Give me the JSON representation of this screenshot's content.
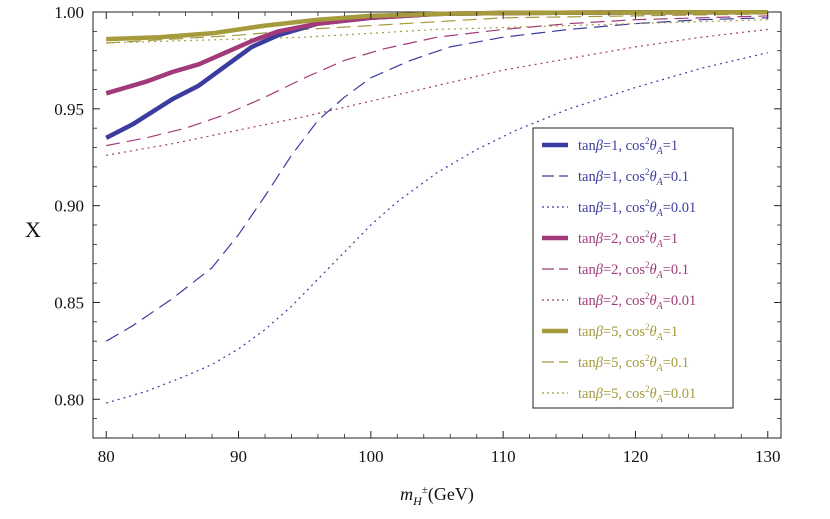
{
  "chart_data": {
    "type": "line",
    "title": "",
    "xlabel_parts": {
      "base": "m",
      "sub": "H",
      "sup": "±",
      "unit": "(GeV)"
    },
    "ylabel": "X",
    "xlim": [
      79,
      131
    ],
    "ylim": [
      0.78,
      1.0
    ],
    "xticks": [
      80,
      90,
      100,
      110,
      120,
      130
    ],
    "yticks": [
      0.8,
      0.85,
      0.9,
      0.95,
      1.0
    ],
    "ytick_labels": [
      "0.80",
      "0.85",
      "0.90",
      "0.95",
      "1.00"
    ],
    "grid": false,
    "legend_position": "right",
    "series": [
      {
        "name": "tanβ=1, cos²θA=1",
        "tanb": "1",
        "cos": "1",
        "color": "#3c3ca0",
        "style": "solid",
        "x": [
          80,
          82,
          85,
          87,
          89,
          91,
          93,
          96,
          100,
          105,
          110,
          120,
          130
        ],
        "y": [
          0.935,
          0.942,
          0.955,
          0.962,
          0.972,
          0.982,
          0.988,
          0.994,
          0.997,
          0.999,
          0.9995,
          0.9998,
          0.9999
        ]
      },
      {
        "name": "tanβ=1, cos²θA=0.1",
        "tanb": "1",
        "cos": "0.1",
        "color": "#3c3ca0",
        "style": "dashed",
        "x": [
          80,
          82,
          85,
          88,
          90,
          92,
          94,
          96,
          98,
          100,
          103,
          106,
          110,
          115,
          120,
          125,
          130
        ],
        "y": [
          0.83,
          0.838,
          0.852,
          0.868,
          0.885,
          0.905,
          0.926,
          0.944,
          0.956,
          0.966,
          0.975,
          0.982,
          0.987,
          0.991,
          0.994,
          0.996,
          0.997
        ]
      },
      {
        "name": "tanβ=1, cos²θA=0.01",
        "tanb": "1",
        "cos": "0.01",
        "color": "#3c3ca0",
        "style": "dotted",
        "x": [
          80,
          83,
          86,
          88,
          90,
          92,
          94,
          96,
          98,
          100,
          102,
          105,
          108,
          111,
          115,
          120,
          125,
          130
        ],
        "y": [
          0.798,
          0.804,
          0.812,
          0.818,
          0.826,
          0.836,
          0.848,
          0.862,
          0.876,
          0.89,
          0.902,
          0.917,
          0.929,
          0.939,
          0.95,
          0.961,
          0.971,
          0.979
        ]
      },
      {
        "name": "tanβ=2, cos²θA=1",
        "tanb": "2",
        "cos": "1",
        "color": "#a23a7a",
        "style": "solid",
        "x": [
          80,
          83,
          85,
          87,
          89,
          91,
          93,
          96,
          100,
          105,
          110,
          120,
          130
        ],
        "y": [
          0.958,
          0.964,
          0.969,
          0.973,
          0.979,
          0.985,
          0.99,
          0.994,
          0.997,
          0.999,
          0.9995,
          0.9998,
          0.9999
        ]
      },
      {
        "name": "tanβ=2, cos²θA=0.1",
        "tanb": "2",
        "cos": "0.1",
        "color": "#a23a7a",
        "style": "dashed",
        "x": [
          80,
          83,
          86,
          89,
          92,
          95,
          98,
          101,
          105,
          110,
          115,
          120,
          130
        ],
        "y": [
          0.931,
          0.935,
          0.94,
          0.947,
          0.956,
          0.966,
          0.975,
          0.981,
          0.987,
          0.991,
          0.994,
          0.996,
          0.998
        ]
      },
      {
        "name": "tanβ=2, cos²θA=0.01",
        "tanb": "2",
        "cos": "0.01",
        "color": "#a23a7a",
        "style": "dotted",
        "x": [
          80,
          85,
          90,
          95,
          100,
          105,
          110,
          115,
          120,
          125,
          130
        ],
        "y": [
          0.926,
          0.932,
          0.939,
          0.946,
          0.954,
          0.962,
          0.97,
          0.976,
          0.982,
          0.987,
          0.991
        ]
      },
      {
        "name": "tanβ=5, cos²θA=1",
        "tanb": "5",
        "cos": "1",
        "color": "#a59a3c",
        "style": "solid",
        "x": [
          80,
          84,
          88,
          92,
          96,
          100,
          105,
          110,
          120,
          130
        ],
        "y": [
          0.986,
          0.987,
          0.989,
          0.993,
          0.996,
          0.998,
          0.999,
          0.9995,
          0.9998,
          0.9999
        ]
      },
      {
        "name": "tanβ=5, cos²θA=0.1",
        "tanb": "5",
        "cos": "0.1",
        "color": "#a59a3c",
        "style": "dashed",
        "x": [
          80,
          85,
          90,
          95,
          100,
          105,
          110,
          120,
          130
        ],
        "y": [
          0.984,
          0.986,
          0.988,
          0.991,
          0.993,
          0.995,
          0.997,
          0.998,
          0.999
        ]
      },
      {
        "name": "tanβ=5, cos²θA=0.01",
        "tanb": "5",
        "cos": "0.01",
        "color": "#a59a3c",
        "style": "dotted",
        "x": [
          80,
          85,
          90,
          95,
          100,
          105,
          110,
          120,
          130
        ],
        "y": [
          0.984,
          0.985,
          0.986,
          0.987,
          0.989,
          0.991,
          0.992,
          0.994,
          0.996
        ]
      }
    ]
  }
}
